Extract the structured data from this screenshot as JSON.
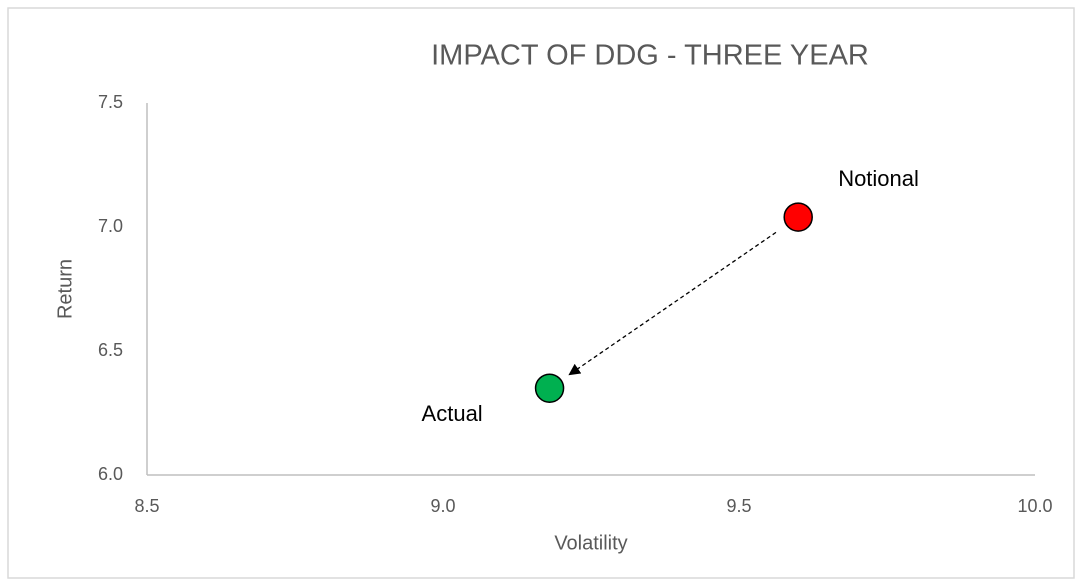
{
  "chart_data": {
    "type": "scatter",
    "title": "IMPACT OF DDG - THREE YEAR",
    "x_label": "Volatility",
    "y_label": "Return",
    "series": [
      {
        "name": "Notional",
        "color": "#ff0000",
        "x": [
          9.6
        ],
        "values": [
          7.04
        ]
      },
      {
        "name": "Actual",
        "color": "#00b050",
        "x": [
          9.18
        ],
        "values": [
          6.35
        ]
      }
    ],
    "xlim": [
      8.5,
      10
    ],
    "xticks": [
      8.5,
      {
        "value": 9,
        "label": "9.0"
      },
      9.5,
      {
        "value": 10,
        "label": "10.0"
      }
    ],
    "ylim": [
      6,
      7.5
    ],
    "yticks": [
      {
        "value": 6,
        "label": "6.0"
      },
      6.5,
      {
        "value": 7,
        "label": "7.0"
      },
      7.5
    ],
    "grid": false
  }
}
